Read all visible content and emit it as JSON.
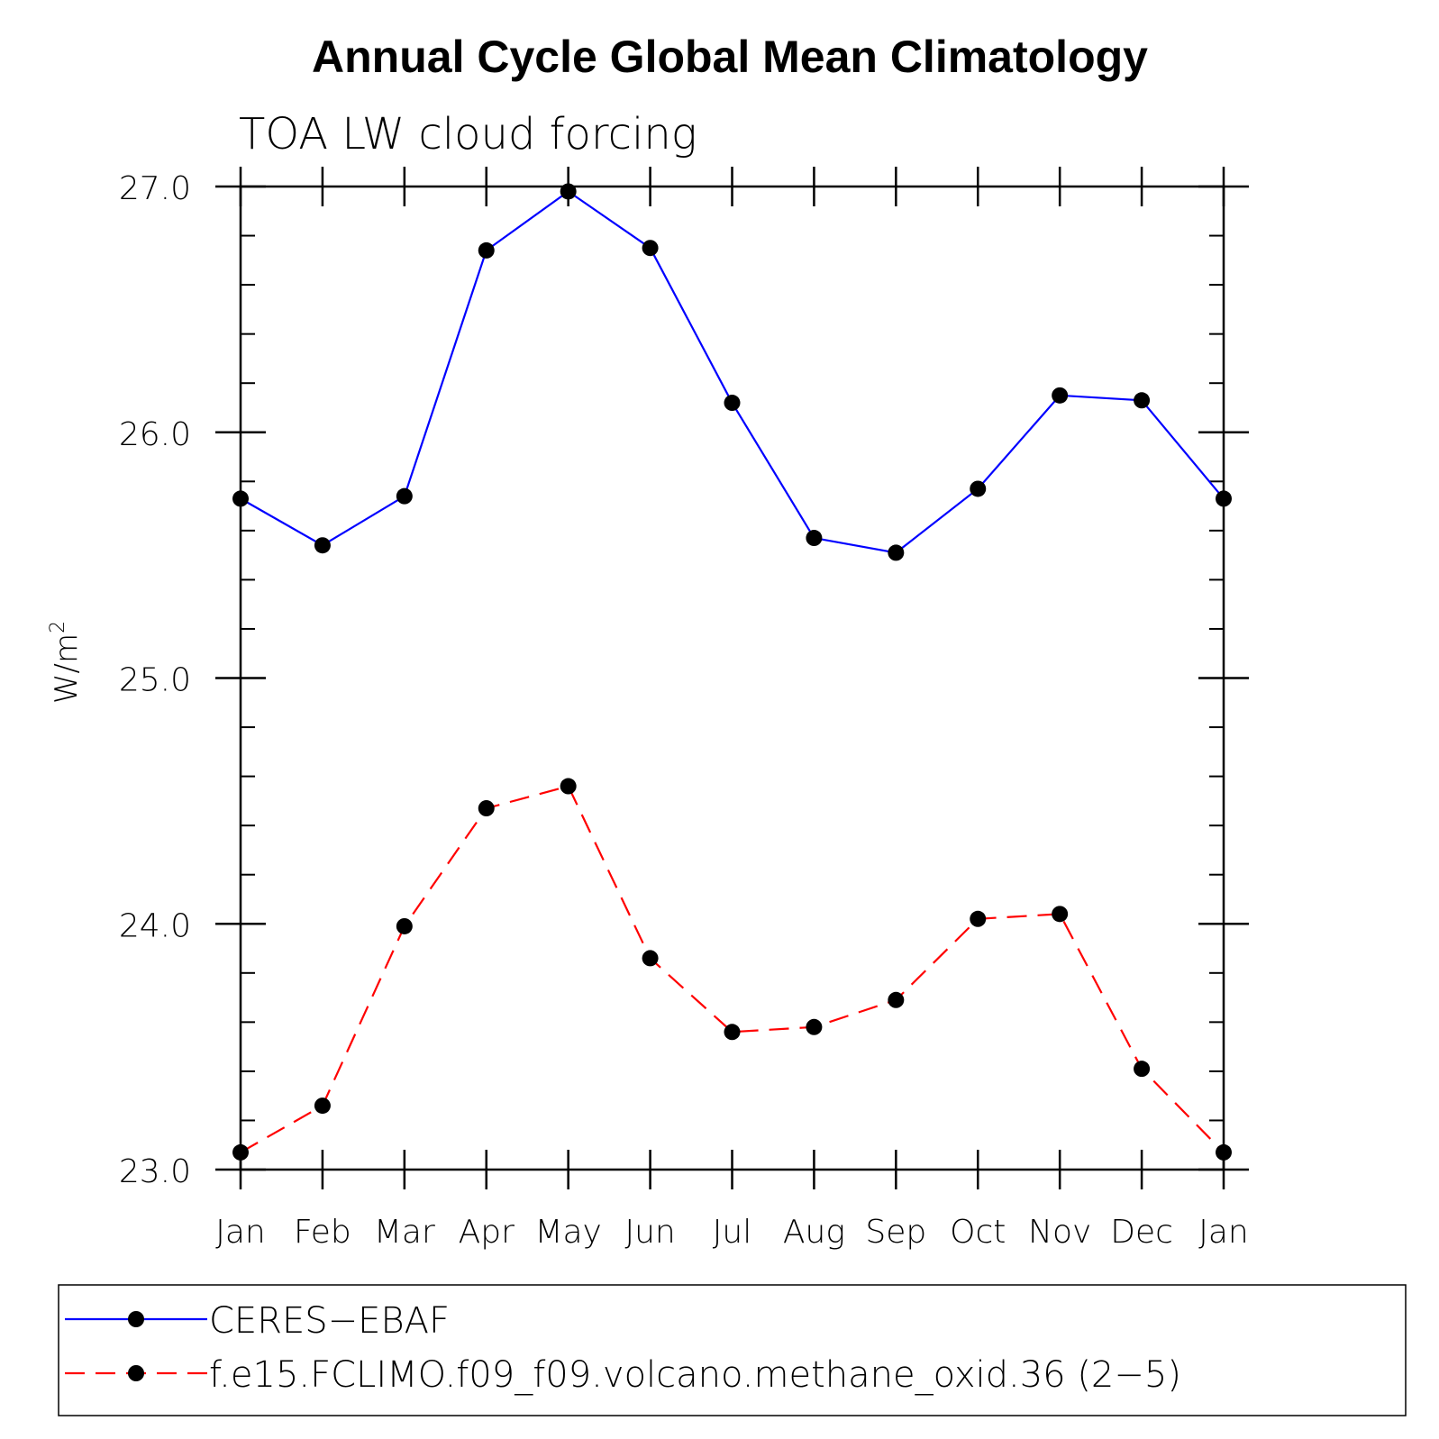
{
  "chart_data": {
    "type": "line",
    "title": "Annual Cycle Global Mean Climatology",
    "subtitle": "TOA LW cloud forcing",
    "ylabel": "W/m",
    "ylabel_superscript": "2",
    "ylim": [
      23.0,
      27.0
    ],
    "yticks": [
      23.0,
      24.0,
      25.0,
      26.0,
      27.0
    ],
    "ytick_labels": [
      "23.0",
      "24.0",
      "25.0",
      "26.0",
      "27.0"
    ],
    "y_minor_step": 0.2,
    "categories": [
      "Jan",
      "Feb",
      "Mar",
      "Apr",
      "May",
      "Jun",
      "Jul",
      "Aug",
      "Sep",
      "Oct",
      "Nov",
      "Dec",
      "Jan"
    ],
    "series": [
      {
        "name": "CERES−EBAF",
        "color": "#0000ff",
        "dash": "solid",
        "values": [
          25.73,
          25.54,
          25.74,
          26.74,
          26.98,
          26.75,
          26.12,
          25.57,
          25.51,
          25.77,
          26.15,
          26.13,
          25.73
        ]
      },
      {
        "name": "f.e15.FCLIMO.f09_f09.volcano.methane_oxid.36 (2−5)",
        "color": "#ff0000",
        "dash": "dashed",
        "values": [
          23.07,
          23.26,
          23.99,
          24.47,
          24.56,
          23.86,
          23.56,
          23.58,
          23.69,
          24.02,
          24.04,
          23.41,
          23.07
        ]
      }
    ],
    "marker_color": "#000000",
    "legend_position": "bottom"
  }
}
